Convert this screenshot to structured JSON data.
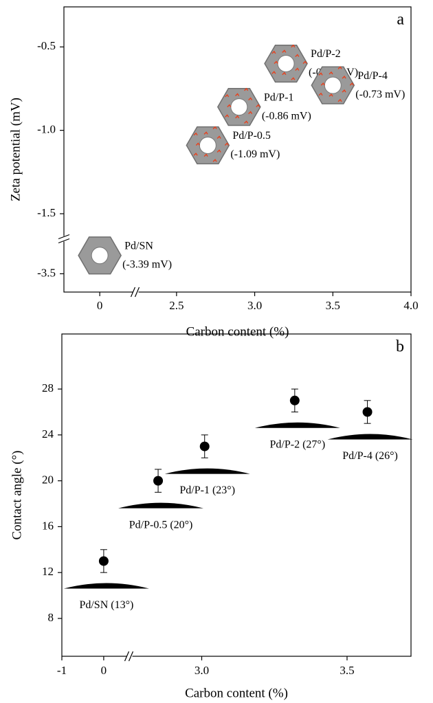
{
  "chart_data": [
    {
      "type": "scatter",
      "panel_label": "a",
      "x_label": "Carbon content (%)",
      "y_label": "Zeta potential (mV)",
      "x_segments": [
        {
          "xlim": [
            -0.23,
            0.22
          ],
          "xticks": [
            0
          ]
        },
        {
          "xlim": [
            2.25,
            4.0
          ],
          "xticks": [
            2.5,
            {
              "value": 3,
              "label": "3.0"
            },
            3.5,
            {
              "value": 4,
              "label": "4.0"
            }
          ]
        }
      ],
      "y_segments": [
        {
          "ylim": [
            -3.61,
            -3.3
          ],
          "yticks": [
            -3.5
          ]
        },
        {
          "ylim": [
            -1.64,
            -0.26
          ],
          "yticks": [
            -1.5,
            {
              "value": -1,
              "label": "-1.0"
            },
            -0.5
          ]
        }
      ],
      "point_labels": [
        "Pd/SN",
        "Pd/P-0.5",
        "Pd/P-1",
        "Pd/P-2",
        "Pd/P-4"
      ],
      "x": [
        0,
        2.7,
        2.9,
        3.2,
        3.5
      ],
      "values": [
        -3.39,
        -1.09,
        -0.86,
        -0.6,
        -0.73
      ],
      "value_labels": [
        "(-3.39 mV)",
        "(-1.09 mV)",
        "(-0.86 mV)",
        "(-0.60 mV)",
        "(-0.73 mV)"
      ],
      "color": "#9a9a9a",
      "accent_color": "#e8401c"
    },
    {
      "type": "errorbar",
      "panel_label": "b",
      "x_label": "Carbon content (%)",
      "y_label": "Contact angle (°)",
      "x_segments": [
        {
          "xlim": [
            -1,
            0.56
          ],
          "xticks": [
            -1,
            0
          ]
        },
        {
          "xlim": [
            2.76,
            3.72
          ],
          "xticks": [
            {
              "value": 3,
              "label": "3.0"
            },
            3.5
          ]
        }
      ],
      "y_segments": [
        {
          "ylim": [
            4.7,
            32.8
          ],
          "yticks": [
            8,
            12,
            16,
            20,
            24,
            28
          ]
        }
      ],
      "x": [
        0,
        2.85,
        3.01,
        3.32,
        3.57
      ],
      "values": [
        13,
        20,
        23,
        27,
        26
      ],
      "errors": [
        1,
        1,
        1,
        1,
        1
      ],
      "value_labels": [
        "Pd/SN (13°)",
        "Pd/P-0.5 (20°)",
        "Pd/P-1 (23°)",
        "Pd/P-2 (27°)",
        "Pd/P-4 (26°)"
      ],
      "color": "#000000"
    }
  ]
}
